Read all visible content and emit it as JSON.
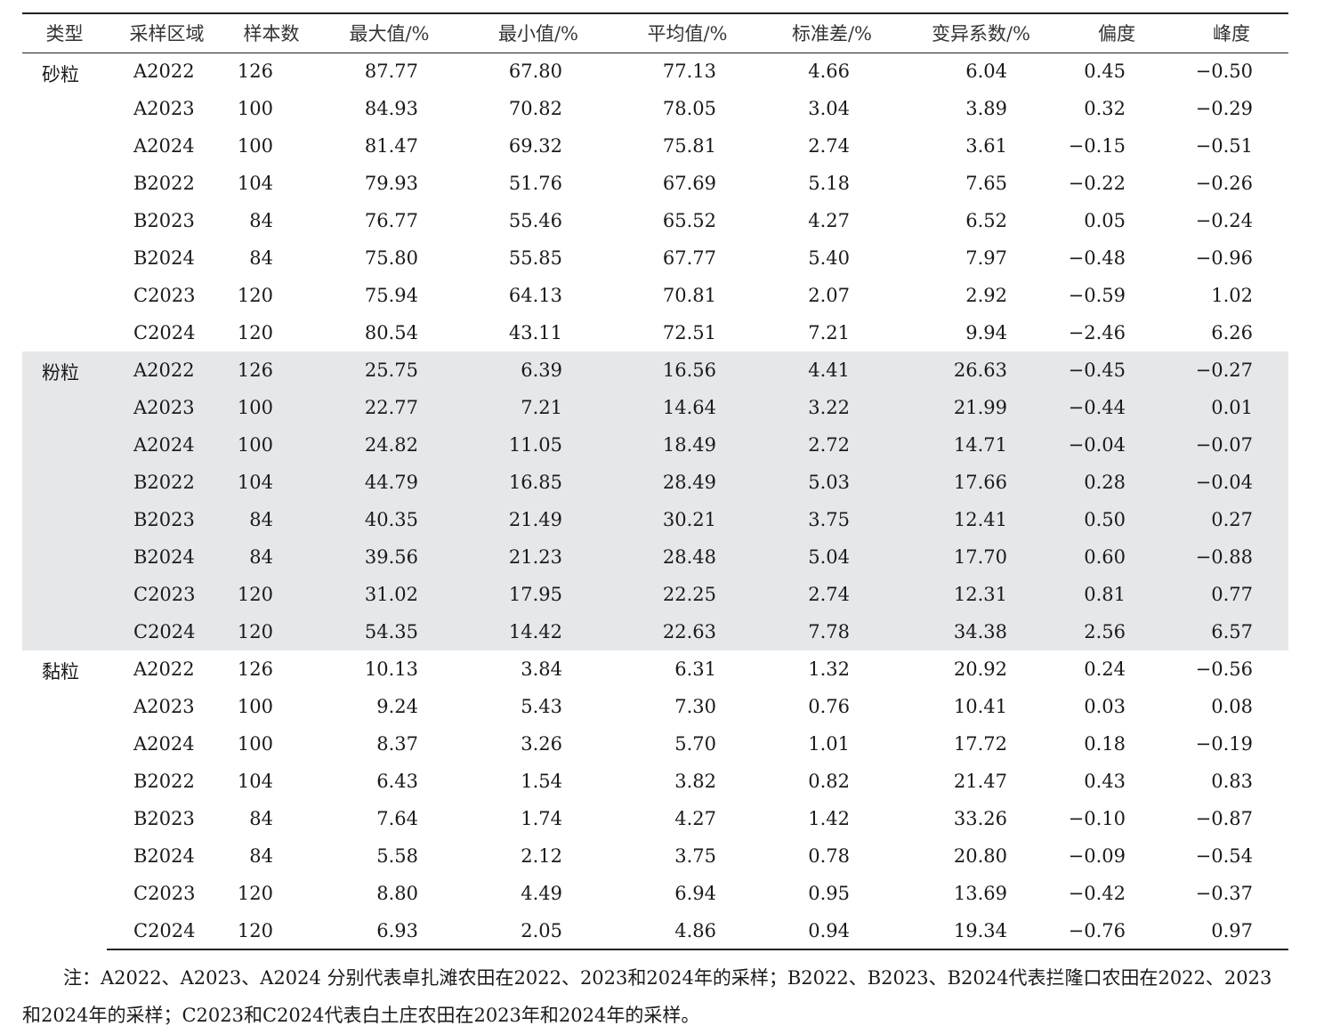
{
  "table": {
    "headers": [
      "类型",
      "采样区域",
      "样本数",
      "最大值/%",
      "最小值/%",
      "平均值/%",
      "标准差/%",
      "变异系数/%",
      "偏度",
      "峰度"
    ],
    "groups": [
      {
        "type": "砂粒",
        "shaded": false,
        "rows": [
          [
            "A2022",
            "126",
            "87.77",
            "67.80",
            "77.13",
            "4.66",
            "6.04",
            "0.45",
            "−0.50"
          ],
          [
            "A2023",
            "100",
            "84.93",
            "70.82",
            "78.05",
            "3.04",
            "3.89",
            "0.32",
            "−0.29"
          ],
          [
            "A2024",
            "100",
            "81.47",
            "69.32",
            "75.81",
            "2.74",
            "3.61",
            "−0.15",
            "−0.51"
          ],
          [
            "B2022",
            "104",
            "79.93",
            "51.76",
            "67.69",
            "5.18",
            "7.65",
            "−0.22",
            "−0.26"
          ],
          [
            "B2023",
            "84",
            "76.77",
            "55.46",
            "65.52",
            "4.27",
            "6.52",
            "0.05",
            "−0.24"
          ],
          [
            "B2024",
            "84",
            "75.80",
            "55.85",
            "67.77",
            "5.40",
            "7.97",
            "−0.48",
            "−0.96"
          ],
          [
            "C2023",
            "120",
            "75.94",
            "64.13",
            "70.81",
            "2.07",
            "2.92",
            "−0.59",
            "1.02"
          ],
          [
            "C2024",
            "120",
            "80.54",
            "43.11",
            "72.51",
            "7.21",
            "9.94",
            "−2.46",
            "6.26"
          ]
        ]
      },
      {
        "type": "粉粒",
        "shaded": true,
        "rows": [
          [
            "A2022",
            "126",
            "25.75",
            "6.39",
            "16.56",
            "4.41",
            "26.63",
            "−0.45",
            "−0.27"
          ],
          [
            "A2023",
            "100",
            "22.77",
            "7.21",
            "14.64",
            "3.22",
            "21.99",
            "−0.44",
            "0.01"
          ],
          [
            "A2024",
            "100",
            "24.82",
            "11.05",
            "18.49",
            "2.72",
            "14.71",
            "−0.04",
            "−0.07"
          ],
          [
            "B2022",
            "104",
            "44.79",
            "16.85",
            "28.49",
            "5.03",
            "17.66",
            "0.28",
            "−0.04"
          ],
          [
            "B2023",
            "84",
            "40.35",
            "21.49",
            "30.21",
            "3.75",
            "12.41",
            "0.50",
            "0.27"
          ],
          [
            "B2024",
            "84",
            "39.56",
            "21.23",
            "28.48",
            "5.04",
            "17.70",
            "0.60",
            "−0.88"
          ],
          [
            "C2023",
            "120",
            "31.02",
            "17.95",
            "22.25",
            "2.74",
            "12.31",
            "0.81",
            "0.77"
          ],
          [
            "C2024",
            "120",
            "54.35",
            "14.42",
            "22.63",
            "7.78",
            "34.38",
            "2.56",
            "6.57"
          ]
        ]
      },
      {
        "type": "黏粒",
        "shaded": false,
        "rows": [
          [
            "A2022",
            "126",
            "10.13",
            "3.84",
            "6.31",
            "1.32",
            "20.92",
            "0.24",
            "−0.56"
          ],
          [
            "A2023",
            "100",
            "9.24",
            "5.43",
            "7.30",
            "0.76",
            "10.41",
            "0.03",
            "0.08"
          ],
          [
            "A2024",
            "100",
            "8.37",
            "3.26",
            "5.70",
            "1.01",
            "17.72",
            "0.18",
            "−0.19"
          ],
          [
            "B2022",
            "104",
            "6.43",
            "1.54",
            "3.82",
            "0.82",
            "21.47",
            "0.43",
            "0.83"
          ],
          [
            "B2023",
            "84",
            "7.64",
            "1.74",
            "4.27",
            "1.42",
            "33.26",
            "−0.10",
            "−0.87"
          ],
          [
            "B2024",
            "84",
            "5.58",
            "2.12",
            "3.75",
            "0.78",
            "20.80",
            "−0.09",
            "−0.54"
          ],
          [
            "C2023",
            "120",
            "8.80",
            "4.49",
            "6.94",
            "0.95",
            "13.69",
            "−0.42",
            "−0.37"
          ],
          [
            "C2024",
            "120",
            "6.93",
            "2.05",
            "4.86",
            "0.94",
            "19.34",
            "−0.76",
            "0.97"
          ]
        ]
      }
    ],
    "shade_color": "#e6e7e9"
  },
  "note": "注：A2022、A2023、A2024 分别代表卓扎滩农田在2022、2023和2024年的采样；B2022、B2023、B2024代表拦隆口农田在2022、2023和2024年的采样；C2023和C2024代表白土庄农田在2023年和2024年的采样。"
}
